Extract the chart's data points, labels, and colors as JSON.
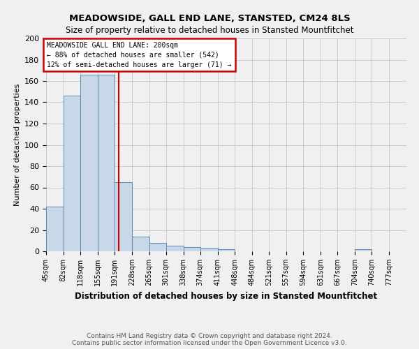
{
  "title": "MEADOWSIDE, GALL END LANE, STANSTED, CM24 8LS",
  "subtitle": "Size of property relative to detached houses in Stansted Mountfitchet",
  "xlabel": "Distribution of detached houses by size in Stansted Mountfitchet",
  "ylabel": "Number of detached properties",
  "bin_labels": [
    "45sqm",
    "82sqm",
    "118sqm",
    "155sqm",
    "191sqm",
    "228sqm",
    "265sqm",
    "301sqm",
    "338sqm",
    "374sqm",
    "411sqm",
    "448sqm",
    "484sqm",
    "521sqm",
    "557sqm",
    "594sqm",
    "631sqm",
    "667sqm",
    "704sqm",
    "740sqm",
    "777sqm"
  ],
  "bin_edges": [
    45,
    82,
    118,
    155,
    191,
    228,
    265,
    301,
    338,
    374,
    411,
    448,
    484,
    521,
    557,
    594,
    631,
    667,
    704,
    740,
    777
  ],
  "bar_heights": [
    42,
    146,
    166,
    166,
    65,
    14,
    8,
    5,
    4,
    3,
    2,
    0,
    0,
    0,
    0,
    0,
    0,
    0,
    2,
    0
  ],
  "bar_color": "#c8d8e8",
  "bar_edge_color": "#5a8ab0",
  "property_size": 200,
  "vline_color": "#cc0000",
  "annotation_title": "MEADOWSIDE GALL END LANE: 200sqm",
  "annotation_line1": "← 88% of detached houses are smaller (542)",
  "annotation_line2": "12% of semi-detached houses are larger (71) →",
  "annotation_box_color": "#cc0000",
  "ylim": [
    0,
    200
  ],
  "yticks": [
    0,
    20,
    40,
    60,
    80,
    100,
    120,
    140,
    160,
    180,
    200
  ],
  "footnote1": "Contains HM Land Registry data © Crown copyright and database right 2024.",
  "footnote2": "Contains public sector information licensed under the Open Government Licence v3.0.",
  "background_color": "#f0f0f0",
  "grid_color": "#cccccc"
}
